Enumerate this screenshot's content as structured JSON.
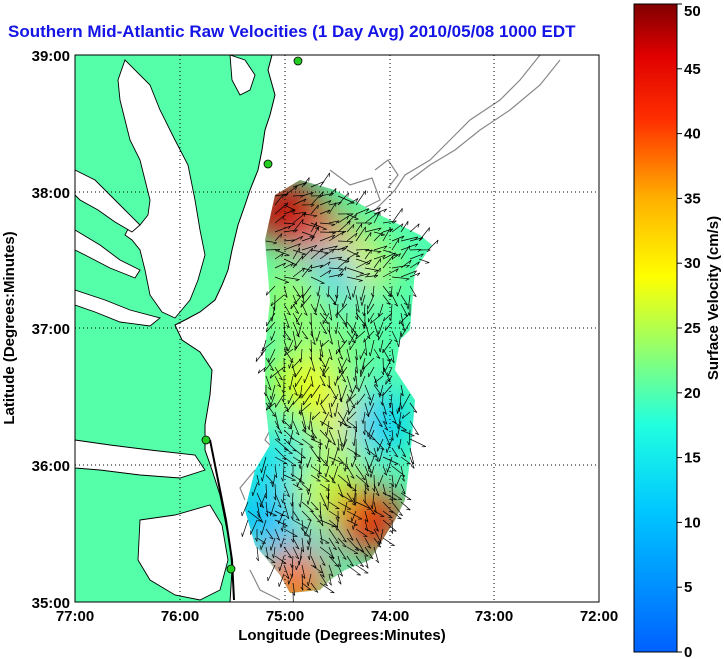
{
  "title": "Southern Mid-Atlantic Raw Velocities (1 Day Avg) 2010/05/08 1000 EDT",
  "colors": {
    "land": "#55ffaa",
    "water": "#ffffff",
    "title": "#1414e6",
    "coastline": "#000000",
    "bathymetry": "#888888",
    "station": "#22cc22"
  },
  "chart_data": {
    "type": "heatmap",
    "xlabel": "Longitude (Degrees:Minutes)",
    "ylabel": "Latitude (Degrees:Minutes)",
    "xlim": [
      77,
      72
    ],
    "ylim": [
      35,
      39
    ],
    "x_ticks": [
      "77:00",
      "76:00",
      "75:00",
      "74:00",
      "73:00",
      "72:00"
    ],
    "y_ticks": [
      "39:00",
      "38:00",
      "37:00",
      "36:00",
      "35:00"
    ],
    "grid": true,
    "colorbar": {
      "label": "Surface Velocity (cm/s)",
      "min": 0,
      "max": 50,
      "ticks": [
        "50",
        "45",
        "40",
        "35",
        "30",
        "25",
        "20",
        "15",
        "10",
        "5",
        "0"
      ],
      "colormap": "jet"
    },
    "velocity_regions": [
      {
        "lon": 75.0,
        "lat": 37.85,
        "speed": 47
      },
      {
        "lon": 74.6,
        "lat": 37.6,
        "speed": 42
      },
      {
        "lon": 74.35,
        "lat": 37.45,
        "speed": 30
      },
      {
        "lon": 74.6,
        "lat": 37.35,
        "speed": 12
      },
      {
        "lon": 74.9,
        "lat": 37.2,
        "speed": 24
      },
      {
        "lon": 74.5,
        "lat": 36.9,
        "speed": 22
      },
      {
        "lon": 74.8,
        "lat": 36.6,
        "speed": 28
      },
      {
        "lon": 74.4,
        "lat": 36.3,
        "speed": 30
      },
      {
        "lon": 74.1,
        "lat": 36.3,
        "speed": 12
      },
      {
        "lon": 75.1,
        "lat": 36.0,
        "speed": 14
      },
      {
        "lon": 75.2,
        "lat": 35.6,
        "speed": 10
      },
      {
        "lon": 74.6,
        "lat": 35.8,
        "speed": 26
      },
      {
        "lon": 74.2,
        "lat": 35.6,
        "speed": 44
      },
      {
        "lon": 74.9,
        "lat": 35.3,
        "speed": 12
      },
      {
        "lon": 74.9,
        "lat": 35.15,
        "speed": 38
      }
    ]
  }
}
